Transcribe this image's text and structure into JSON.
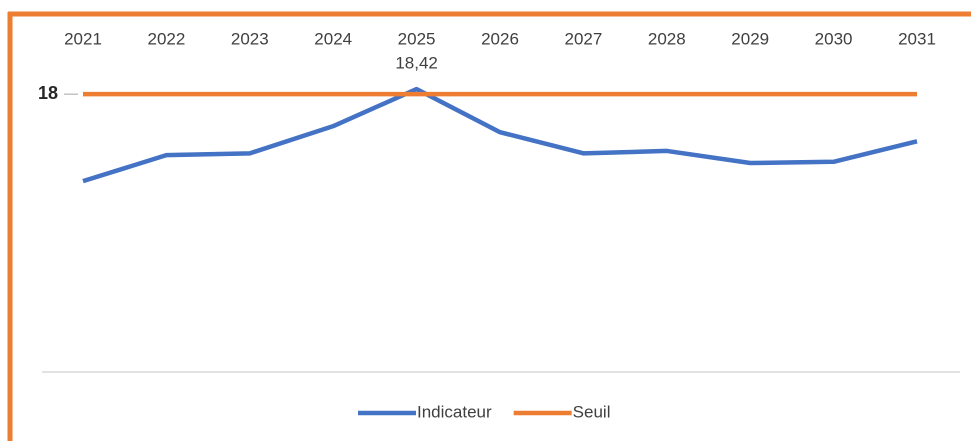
{
  "chart_data": {
    "type": "line",
    "categories": [
      "2021",
      "2022",
      "2023",
      "2024",
      "2025",
      "2026",
      "2027",
      "2028",
      "2029",
      "2030",
      "2031"
    ],
    "series": [
      {
        "name": "Indicateur",
        "color": "#4472c4",
        "values": [
          10.8,
          12.95,
          13.1,
          15.35,
          18.42,
          14.85,
          13.1,
          13.3,
          12.3,
          12.4,
          14.1
        ],
        "value_labels": [
          null,
          null,
          null,
          null,
          "18,42",
          null,
          null,
          null,
          null,
          null,
          null
        ]
      },
      {
        "name": "Seuil",
        "color": "#ed7d31",
        "values": [
          18,
          18,
          18,
          18,
          18,
          18,
          18,
          18,
          18,
          18,
          18
        ]
      }
    ],
    "ylim": [
      -5,
      20
    ],
    "yticks": [
      18
    ],
    "legend": "bottom"
  }
}
